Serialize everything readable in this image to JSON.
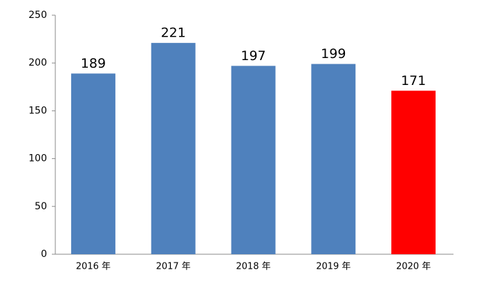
{
  "chart_data": {
    "type": "bar",
    "categories": [
      "2016 年",
      "2017 年",
      "2018 年",
      "2019 年",
      "2020 年"
    ],
    "values": [
      189,
      221,
      197,
      199,
      171
    ],
    "colors": [
      "#4f81bd",
      "#4f81bd",
      "#4f81bd",
      "#4f81bd",
      "#ff0000"
    ],
    "ylim": [
      0,
      250
    ],
    "yticks": [
      0,
      50,
      100,
      150,
      200,
      250
    ],
    "grid": false
  }
}
